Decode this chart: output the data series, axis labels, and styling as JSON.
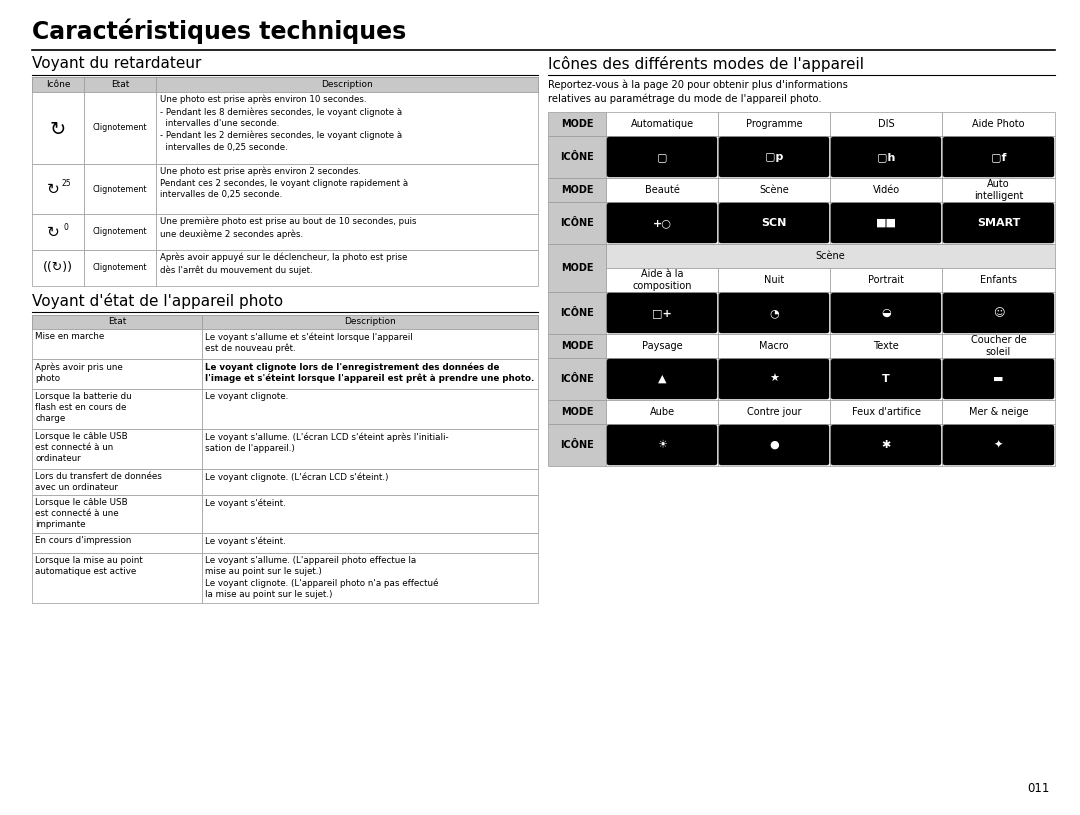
{
  "title": "Caractéristiques techniques",
  "bg_color": "#ffffff",
  "header_bg": "#c8c8c8",
  "scene_bg": "#e0e0e0",
  "left_section_title": "Voyant du retardateur",
  "timer_table_headers": [
    "Icône",
    "Etat",
    "Description"
  ],
  "timer_rows": [
    {
      "desc": "Une photo est prise après environ 10 secondes.\n- Pendant les 8 dernières secondes, le voyant clignote à\n  intervalles d'une seconde.\n- Pendant les 2 dernières secondes, le voyant clignote à\n  intervalles de 0,25 seconde."
    },
    {
      "desc": "Une photo est prise après environ 2 secondes.\nPendant ces 2 secondes, le voyant clignote rapidement à\nintervalles de 0,25 seconde."
    },
    {
      "desc": "Une première photo est prise au bout de 10 secondes, puis\nune deuxième 2 secondes après."
    },
    {
      "desc": "Après avoir appuyé sur le déclencheur, la photo est prise\ndès l'arrêt du mouvement du sujet."
    }
  ],
  "status_section_title": "Voyant d'état de l'appareil photo",
  "status_table_headers": [
    "Etat",
    "Description"
  ],
  "status_rows": [
    [
      "Mise en marche",
      "Le voyant s'allume et s'éteint lorsque l'appareil\nest de nouveau prêt.",
      false
    ],
    [
      "Après avoir pris une\nphoto",
      "Le voyant clignote lors de l'enregistrement des données de\nl'image et s'éteint lorsque l'appareil est prêt à prendre une photo.",
      true
    ],
    [
      "Lorsque la batterie du\nflash est en cours de\ncharge",
      "Le voyant clignote.",
      false
    ],
    [
      "Lorsque le câble USB\nest connecté à un\nordinateur",
      "Le voyant s'allume. (L'écran LCD s'éteint après l'initiali-\nsation de l'appareil.)",
      false
    ],
    [
      "Lors du transfert de données\navec un ordinateur",
      "Le voyant clignote. (L'écran LCD s'éteint.)",
      false
    ],
    [
      "Lorsque le câble USB\nest connecté à une\nimprimante",
      "Le voyant s'éteint.",
      false
    ],
    [
      "En cours d'impression",
      "Le voyant s'éteint.",
      false
    ],
    [
      "Lorsque la mise au point\nautomatique est active",
      "Le voyant s'allume. (L'appareil photo effectue la\nmise au point sur le sujet.)\nLe voyant clignote. (L'appareil photo n'a pas effectué\nla mise au point sur le sujet.)",
      false
    ]
  ],
  "right_section_title": "Icônes des différents modes de l'appareil",
  "right_section_intro": "Reportez-vous à la page 20 pour obtenir plus d'informations\nrelatives au paramétrage du mode de l'appareil photo.",
  "page_number": "011"
}
